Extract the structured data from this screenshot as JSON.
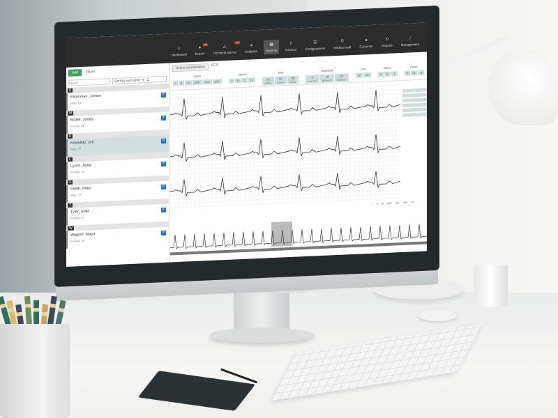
{
  "nav": [
    {
      "label": "Dashboard",
      "icon": "home-icon"
    },
    {
      "label": "Events",
      "icon": "bell-icon",
      "badge": "99"
    },
    {
      "label": "Technical alarms",
      "icon": "alarm-icon",
      "badge": "11"
    },
    {
      "label": "Incidents",
      "icon": "megaphone-icon"
    },
    {
      "label": "Patients",
      "icon": "patients-icon",
      "active": true
    },
    {
      "label": "Devices",
      "icon": "device-icon"
    },
    {
      "label": "Configurations",
      "icon": "config-icon"
    },
    {
      "label": "Medical staff",
      "icon": "staff-icon"
    },
    {
      "label": "Customer",
      "icon": "user-icon"
    },
    {
      "label": "Reports",
      "icon": "refresh-icon"
    },
    {
      "label": "Management",
      "icon": "wrench-icon"
    }
  ],
  "left": {
    "add": "Add",
    "filters": "Filters",
    "search_placeholder": "Search",
    "sort": "Sort by surname:  A - Z",
    "patients": [
      {
        "letter": "E",
        "name": "Eisenman, James",
        "sub": "Male, 54"
      },
      {
        "letter": "M",
        "name": "Müller, Jonas",
        "sub": "Female, 36"
      },
      {
        "letter": "K",
        "name": "Kowalski, Jan",
        "sub": "Male, 37",
        "selected": true
      },
      {
        "letter": "L",
        "name": "Lynch, Anita",
        "sub": "Female, 29"
      },
      {
        "letter": "S",
        "name": "Smith, Peter",
        "sub": "Male, 77"
      },
      {
        "letter": "T",
        "name": "Tyler, Sofia",
        "sub": "Female, 67"
      },
      {
        "letter": "W",
        "name": "Wagner, Maya",
        "sub": "Female, 38"
      }
    ]
  },
  "main": {
    "tabs": [
      "Active examination",
      "ECG"
    ],
    "tool_groups": [
      {
        "title": "Leads",
        "buttons": [
          "I",
          "II",
          "III",
          "aVR",
          "aVL",
          "aVF"
        ]
      },
      {
        "title": "Layout",
        "buttons": [
          "1",
          "6",
          "2",
          "12"
        ]
      },
      {
        "title": "Time",
        "buttons": [
          "10 mm/s",
          "25 mm/s",
          "50 mm/s"
        ]
      },
      {
        "title": "Amplitude",
        "buttons": [
          "5 mm/mV",
          "10 mm/mV",
          "20 mm/mV"
        ]
      },
      {
        "title": "Grid",
        "buttons": [
          "on",
          "off"
        ]
      },
      {
        "title": "Marks",
        "buttons": [
          "R",
          "P",
          "T"
        ]
      },
      {
        "title": "Points",
        "buttons": [
          "P",
          "Q",
          "S"
        ]
      }
    ],
    "strip_scale": [
      "I",
      "II",
      "III",
      "aVR",
      "aVL",
      "aVF",
      "V1"
    ]
  },
  "colors": {
    "accent": "#1b6fd1",
    "add": "#3aa55c",
    "badge": "#c0392b",
    "selected": "#d4dfe0",
    "topbar": "#2c2c2c"
  }
}
